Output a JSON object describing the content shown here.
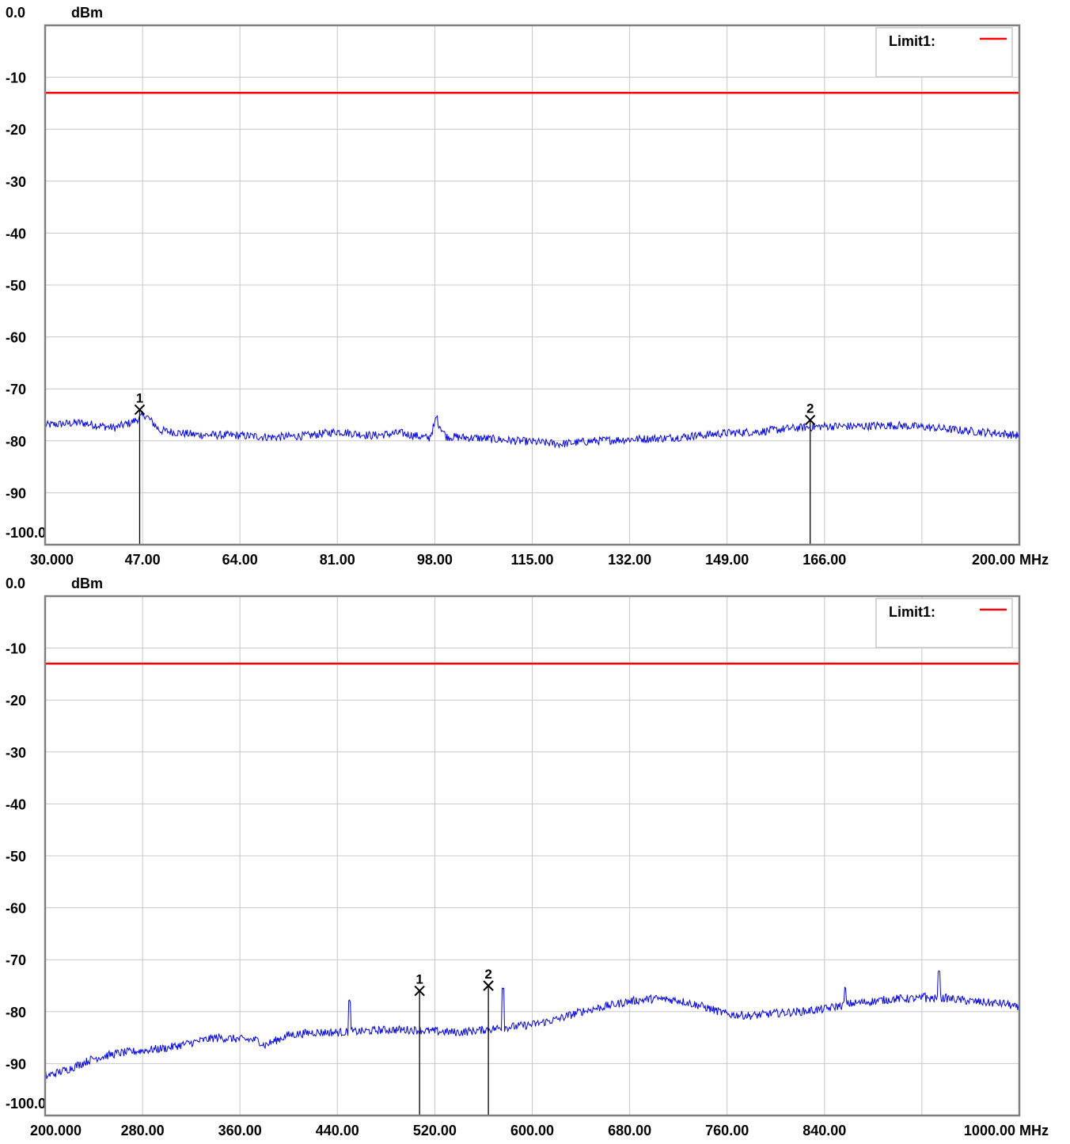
{
  "chart_data": [
    {
      "type": "line",
      "ylabel": "dBm",
      "xunit": "MHz",
      "ylim": [
        -100,
        0
      ],
      "y_ticks": [
        0,
        -10,
        -20,
        -30,
        -40,
        -50,
        -60,
        -70,
        -80,
        -90,
        -100
      ],
      "y_tick_labels": [
        "0.0",
        "-10",
        "-20",
        "-30",
        "-40",
        "-50",
        "-60",
        "-70",
        "-80",
        "-90",
        "-100.0"
      ],
      "x_tick_labels": [
        "30.000",
        "47.00",
        "64.00",
        "81.00",
        "98.00",
        "115.00",
        "132.00",
        "149.00",
        "166.00",
        "",
        "200.00"
      ],
      "grid": true,
      "legend": {
        "position": "top-right",
        "entries": [
          {
            "label": "Limit1:",
            "color": "#ff0000"
          }
        ]
      },
      "limit_line": {
        "name": "Limit1",
        "value": -13,
        "color": "#ff0000"
      },
      "trace_color": "#0000ff",
      "trace_points": [
        [
          30,
          -77
        ],
        [
          36,
          -76.5
        ],
        [
          42,
          -77.5
        ],
        [
          45,
          -76.5
        ],
        [
          47.5,
          -75
        ],
        [
          50,
          -78
        ],
        [
          56,
          -78.8
        ],
        [
          64,
          -79
        ],
        [
          70,
          -79.3
        ],
        [
          76,
          -79
        ],
        [
          81,
          -78.2
        ],
        [
          87,
          -79
        ],
        [
          92,
          -78.5
        ],
        [
          97,
          -79.5
        ],
        [
          98.3,
          -76
        ],
        [
          100,
          -79.2
        ],
        [
          106,
          -79.5
        ],
        [
          112,
          -80
        ],
        [
          115,
          -80.2
        ],
        [
          120,
          -80.6
        ],
        [
          126,
          -80
        ],
        [
          132,
          -79.7
        ],
        [
          138,
          -79.5
        ],
        [
          144,
          -79
        ],
        [
          149,
          -78.5
        ],
        [
          155,
          -78.2
        ],
        [
          160,
          -77.6
        ],
        [
          166,
          -77.2
        ],
        [
          172,
          -77.2
        ],
        [
          178,
          -77
        ],
        [
          184,
          -77.4
        ],
        [
          190,
          -78
        ],
        [
          196,
          -78.5
        ],
        [
          200,
          -79
        ]
      ],
      "spurs": [
        [
          98.3,
          -75.5
        ],
        [
          143.4,
          -78.5
        ]
      ],
      "markers": [
        {
          "label": "1",
          "x": 46.5,
          "y": -74
        },
        {
          "label": "2",
          "x": 163.5,
          "y": -76
        }
      ]
    },
    {
      "type": "line",
      "ylabel": "dBm",
      "xunit": "MHz",
      "ylim": [
        -100,
        0
      ],
      "y_ticks": [
        0,
        -10,
        -20,
        -30,
        -40,
        -50,
        -60,
        -70,
        -80,
        -90,
        -100
      ],
      "y_tick_labels": [
        "0.0",
        "-10",
        "-20",
        "-30",
        "-40",
        "-50",
        "-60",
        "-70",
        "-80",
        "-90",
        "-100.0"
      ],
      "x_tick_labels": [
        "200.000",
        "280.00",
        "360.00",
        "440.00",
        "520.00",
        "600.00",
        "680.00",
        "760.00",
        "840.00",
        "",
        "1000.00"
      ],
      "grid": true,
      "legend": {
        "position": "top-right",
        "entries": [
          {
            "label": "Limit1:",
            "color": "#ff0000"
          }
        ]
      },
      "limit_line": {
        "name": "Limit1",
        "value": -13,
        "color": "#ff0000"
      },
      "trace_color": "#0000ff",
      "trace_points": [
        [
          200,
          -92.5
        ],
        [
          220,
          -91
        ],
        [
          240,
          -89
        ],
        [
          260,
          -88
        ],
        [
          280,
          -87.5
        ],
        [
          300,
          -87
        ],
        [
          320,
          -86
        ],
        [
          340,
          -85
        ],
        [
          360,
          -85.3
        ],
        [
          375,
          -85.5
        ],
        [
          380,
          -86.5
        ],
        [
          400,
          -84.5
        ],
        [
          420,
          -84
        ],
        [
          440,
          -84
        ],
        [
          460,
          -83.8
        ],
        [
          480,
          -83.5
        ],
        [
          500,
          -83.5
        ],
        [
          520,
          -83.8
        ],
        [
          540,
          -84
        ],
        [
          560,
          -83.5
        ],
        [
          580,
          -83
        ],
        [
          600,
          -82.5
        ],
        [
          620,
          -81.5
        ],
        [
          640,
          -80
        ],
        [
          660,
          -79
        ],
        [
          680,
          -78
        ],
        [
          700,
          -77.5
        ],
        [
          720,
          -77.8
        ],
        [
          740,
          -79
        ],
        [
          760,
          -80.5
        ],
        [
          780,
          -80.8
        ],
        [
          800,
          -80.3
        ],
        [
          820,
          -80
        ],
        [
          840,
          -79.5
        ],
        [
          860,
          -78.5
        ],
        [
          880,
          -78
        ],
        [
          900,
          -77.5
        ],
        [
          920,
          -77.5
        ],
        [
          940,
          -77.4
        ],
        [
          960,
          -78
        ],
        [
          975,
          -78.3
        ],
        [
          990,
          -78.5
        ],
        [
          1000,
          -79.5
        ]
      ],
      "spurs": [
        [
          450,
          -78
        ],
        [
          576,
          -75.5
        ],
        [
          644,
          -80
        ],
        [
          710,
          -80
        ],
        [
          736,
          -79.5
        ],
        [
          857,
          -75.5
        ],
        [
          922,
          -76.5
        ],
        [
          934,
          -72
        ]
      ],
      "markers": [
        {
          "label": "1",
          "x": 507.5,
          "y": -76
        },
        {
          "label": "2",
          "x": 564,
          "y": -75
        }
      ]
    }
  ]
}
